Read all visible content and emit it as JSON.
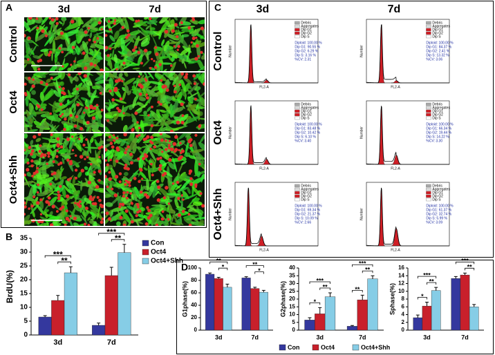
{
  "panel_a": {
    "label": "A",
    "columns": [
      "3d",
      "7d"
    ],
    "rows": [
      "Control",
      "Oct4",
      "Oct4+Shh"
    ]
  },
  "panel_c": {
    "label": "C",
    "columns": [
      "3d",
      "7d"
    ],
    "rows": [
      "Control",
      "Oct4",
      "Oct4+Shh"
    ],
    "x_label": "FL2-A",
    "y_label": "Number",
    "legend": [
      "Debris",
      "Aggregates",
      "Dip G1",
      "Dip G2",
      "Dip S"
    ],
    "stats": [
      [
        [
          "Diploid: 100.00 %",
          "Dip G1: 90.55 %",
          "Dip G2: 6.29 %",
          "Dip S: 3.16 %",
          "%CV: 2.31"
        ],
        [
          "Diploid: 100.00 %",
          "Dip G1: 84.37 %",
          "Dip G2: 2.41 %",
          "Dip S: 13.32 %",
          "%CV: 3.06"
        ]
      ],
      [
        [
          "Diploid: 100.00 %",
          "Dip G1: 83.48 %",
          "Dip G2: 10.42 %",
          "Dip S: 6.10 %",
          "%CV: 3.40"
        ],
        [
          "Diploid: 100.00 %",
          "Dip G1: 66.34 %",
          "Dip G2: 19.44 %",
          "Dip S: 14.22 %",
          "%CV: 3.30"
        ]
      ],
      [
        [
          "Diploid: 100.00 %",
          "Dip G1: 69.34 %",
          "Dip G2: 21.37 %",
          "Dip S: 10.09 %",
          "%CV: 2.66"
        ],
        [
          "Diploid: 100.00 %",
          "Dip G1: 61.37 %",
          "Dip G2: 32.74 %",
          "Dip S: 5.99 %",
          "%CV: 3.09"
        ]
      ]
    ]
  },
  "panel_d_legend": [
    {
      "name": "Con",
      "color": "#34389e"
    },
    {
      "name": "Oct4",
      "color": "#c8202b"
    },
    {
      "name": "Oct4+Shh",
      "color": "#86cde6"
    }
  ],
  "chart_data": [
    {
      "type": "bar",
      "label": "B",
      "y_label": "BrdU(%)",
      "categories": [
        "3d",
        "7d"
      ],
      "ylim": [
        0,
        35
      ],
      "yticks": [
        0,
        5,
        10,
        15,
        20,
        25,
        30,
        35
      ],
      "series": [
        {
          "name": "Con",
          "color": "#34389e",
          "values": [
            6.5,
            3.5
          ],
          "errors": [
            0.5,
            0.8
          ]
        },
        {
          "name": "Oct4",
          "color": "#c8202b",
          "values": [
            12.5,
            21.5
          ],
          "errors": [
            1.8,
            3
          ]
        },
        {
          "name": "Oct4+Shh",
          "color": "#86cde6",
          "values": [
            22.5,
            29.8
          ],
          "errors": [
            2.2,
            3
          ]
        }
      ],
      "annotations": [
        [
          "***",
          "**"
        ],
        [
          "***",
          "**"
        ]
      ]
    },
    {
      "type": "bar",
      "label": "D",
      "y_label": "G1phase(%)",
      "categories": [
        "3d",
        "7d"
      ],
      "ylim": [
        0,
        100
      ],
      "yticks": [
        0,
        20,
        40,
        60,
        80,
        100
      ],
      "series": [
        {
          "color": "#34389e",
          "values": [
            90,
            84
          ],
          "errors": [
            2,
            2
          ]
        },
        {
          "color": "#c8202b",
          "values": [
            83,
            67
          ],
          "errors": [
            2,
            2
          ]
        },
        {
          "color": "#86cde6",
          "values": [
            69,
            61
          ],
          "errors": [
            5,
            3
          ]
        }
      ],
      "annotations": [
        [
          "**",
          "*"
        ],
        [
          "**",
          "*"
        ]
      ]
    },
    {
      "type": "bar",
      "y_label": "G2phase(%)",
      "categories": [
        "3d",
        "7d"
      ],
      "ylim": [
        0,
        40
      ],
      "yticks": [
        0,
        5,
        10,
        15,
        20,
        25,
        30,
        35,
        40
      ],
      "series": [
        {
          "color": "#34389e",
          "values": [
            6.5,
            2.5
          ],
          "errors": [
            1.5,
            0.5
          ]
        },
        {
          "color": "#c8202b",
          "values": [
            10.5,
            19.5
          ],
          "errors": [
            4,
            3
          ]
        },
        {
          "color": "#86cde6",
          "values": [
            21.5,
            33
          ],
          "errors": [
            2.5,
            2
          ]
        }
      ],
      "annotations": [
        [
          "***",
          "**",
          "*"
        ],
        [
          "***",
          "**",
          "**"
        ]
      ]
    },
    {
      "type": "bar",
      "y_label": "Sphase(%)",
      "categories": [
        "3d",
        "7d"
      ],
      "ylim": [
        0,
        16
      ],
      "yticks": [
        0,
        2,
        4,
        6,
        8,
        10,
        12,
        14,
        16
      ],
      "series": [
        {
          "color": "#34389e",
          "values": [
            3.2,
            13.3
          ],
          "errors": [
            0.7,
            0.5
          ]
        },
        {
          "color": "#c8202b",
          "values": [
            6.2,
            14.2
          ],
          "errors": [
            1,
            0.5
          ]
        },
        {
          "color": "#86cde6",
          "values": [
            10.2,
            6
          ],
          "errors": [
            0.8,
            0.6
          ]
        }
      ],
      "annotations": [
        [
          "***",
          "**",
          "*"
        ],
        [
          "***",
          "**"
        ]
      ]
    }
  ]
}
